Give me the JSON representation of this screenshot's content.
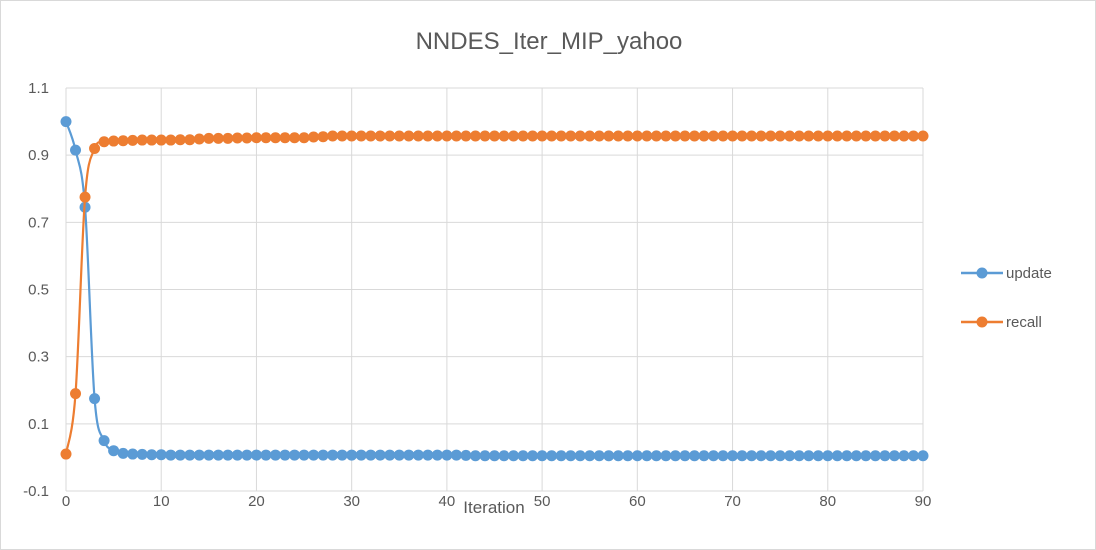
{
  "chart_data": {
    "type": "line",
    "title": "NNDES_Iter_MIP_yahoo",
    "xlabel": "Iteration",
    "ylabel": "",
    "xlim": [
      0,
      90
    ],
    "ylim": [
      -0.1,
      1.1
    ],
    "x_ticks": [
      0,
      10,
      20,
      30,
      40,
      50,
      60,
      70,
      80,
      90
    ],
    "y_ticks": [
      -0.1,
      0.1,
      0.3,
      0.5,
      0.7,
      0.9,
      1.1
    ],
    "y_tick_labels": [
      "-0.1",
      "0.1",
      "0.3",
      "0.5",
      "0.7",
      "0.9",
      "1.1"
    ],
    "x": [
      0,
      1,
      2,
      3,
      4,
      5,
      6,
      7,
      8,
      9,
      10,
      11,
      12,
      13,
      14,
      15,
      16,
      17,
      18,
      19,
      20,
      21,
      22,
      23,
      24,
      25,
      26,
      27,
      28,
      29,
      30,
      31,
      32,
      33,
      34,
      35,
      36,
      37,
      38,
      39,
      40,
      41,
      42,
      43,
      44,
      45,
      46,
      47,
      48,
      49,
      50,
      51,
      52,
      53,
      54,
      55,
      56,
      57,
      58,
      59,
      60,
      61,
      62,
      63,
      64,
      65,
      66,
      67,
      68,
      69,
      70,
      71,
      72,
      73,
      74,
      75,
      76,
      77,
      78,
      79,
      80,
      81,
      82,
      83,
      84,
      85,
      86,
      87,
      88,
      89,
      90
    ],
    "series": [
      {
        "name": "update",
        "color": "#5b9bd5",
        "values": [
          1.0,
          0.915,
          0.745,
          0.175,
          0.05,
          0.02,
          0.012,
          0.01,
          0.009,
          0.008,
          0.008,
          0.007,
          0.007,
          0.007,
          0.007,
          0.007,
          0.007,
          0.007,
          0.007,
          0.007,
          0.007,
          0.007,
          0.007,
          0.007,
          0.007,
          0.007,
          0.007,
          0.007,
          0.007,
          0.007,
          0.007,
          0.007,
          0.007,
          0.007,
          0.007,
          0.007,
          0.007,
          0.007,
          0.007,
          0.007,
          0.007,
          0.007,
          0.006,
          0.005,
          0.005,
          0.005,
          0.005,
          0.005,
          0.005,
          0.005,
          0.005,
          0.005,
          0.005,
          0.005,
          0.005,
          0.005,
          0.005,
          0.005,
          0.005,
          0.005,
          0.005,
          0.005,
          0.005,
          0.005,
          0.005,
          0.005,
          0.005,
          0.005,
          0.005,
          0.005,
          0.005,
          0.005,
          0.005,
          0.005,
          0.005,
          0.005,
          0.005,
          0.005,
          0.005,
          0.005,
          0.005,
          0.005,
          0.005,
          0.005,
          0.005,
          0.005,
          0.005,
          0.005,
          0.005,
          0.005,
          0.005
        ]
      },
      {
        "name": "recall",
        "color": "#ed7d31",
        "values": [
          0.01,
          0.19,
          0.775,
          0.92,
          0.94,
          0.942,
          0.943,
          0.944,
          0.945,
          0.945,
          0.945,
          0.945,
          0.946,
          0.946,
          0.948,
          0.95,
          0.95,
          0.95,
          0.951,
          0.951,
          0.952,
          0.952,
          0.952,
          0.952,
          0.952,
          0.952,
          0.954,
          0.955,
          0.957,
          0.957,
          0.957,
          0.957,
          0.957,
          0.957,
          0.957,
          0.957,
          0.957,
          0.957,
          0.957,
          0.957,
          0.957,
          0.957,
          0.957,
          0.957,
          0.957,
          0.957,
          0.957,
          0.957,
          0.957,
          0.957,
          0.957,
          0.957,
          0.957,
          0.957,
          0.957,
          0.957,
          0.957,
          0.957,
          0.957,
          0.957,
          0.957,
          0.957,
          0.957,
          0.957,
          0.957,
          0.957,
          0.957,
          0.957,
          0.957,
          0.957,
          0.957,
          0.957,
          0.957,
          0.957,
          0.957,
          0.957,
          0.957,
          0.957,
          0.957,
          0.957,
          0.957,
          0.957,
          0.957,
          0.957,
          0.957,
          0.957,
          0.957,
          0.957,
          0.957,
          0.957,
          0.957
        ]
      }
    ],
    "grid": true,
    "legend_position": "right"
  }
}
